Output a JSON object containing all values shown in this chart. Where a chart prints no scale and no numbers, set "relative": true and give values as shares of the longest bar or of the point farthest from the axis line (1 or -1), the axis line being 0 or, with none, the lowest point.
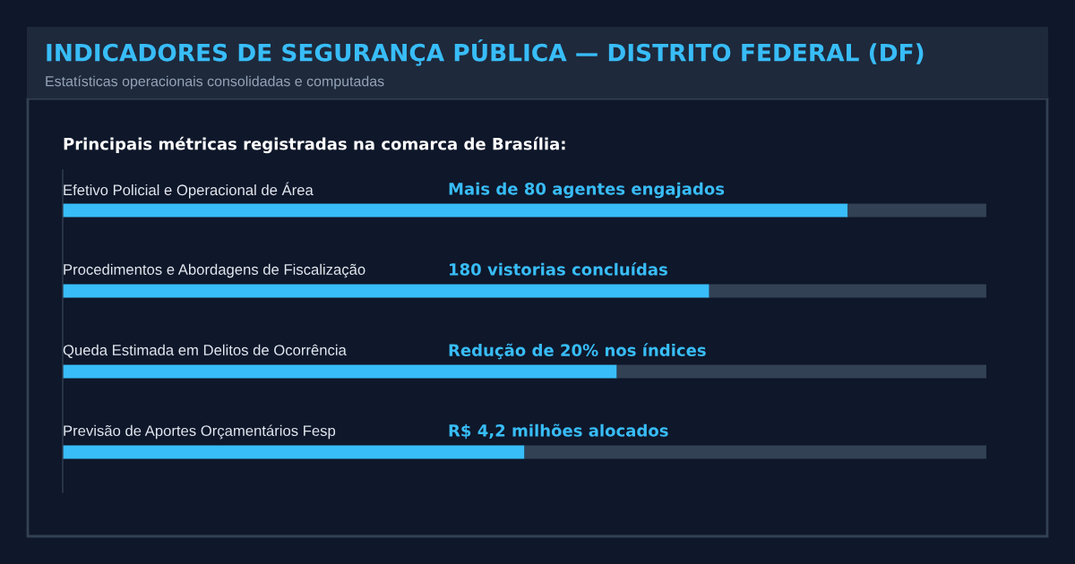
{
  "chart_data": {
    "type": "bar",
    "orientation": "horizontal",
    "stacked": true,
    "relative": true,
    "title": "INDICADORES DE SEGURANÇA PÚBLICA — DISTRITO FEDERAL (DF)",
    "subtitle": "Estatísticas operacionais consolidadas e computadas",
    "annotations": [
      "Principais métricas registradas na comarca de Brasília:",
      "Mais de 80 agentes engajados",
      "180 vistorias concluídas",
      "Redução de 20% nos índices",
      "R$ 4,2 milhões alocados"
    ],
    "categories": [
      "Efetivo Policial e Operacional de Área",
      "Procedimentos e Abordagens de Fiscalização",
      "Queda Estimada em Delitos de Ocorrência",
      "Previsão de Aportes Orçamentários Fesp"
    ],
    "series": [
      {
        "color": "#38bdf8",
        "values": [
          0.85,
          0.7,
          0.6,
          0.5
        ]
      },
      {
        "color": "#334155",
        "values": [
          0.15,
          0.3,
          0.4,
          0.5
        ]
      }
    ]
  }
}
